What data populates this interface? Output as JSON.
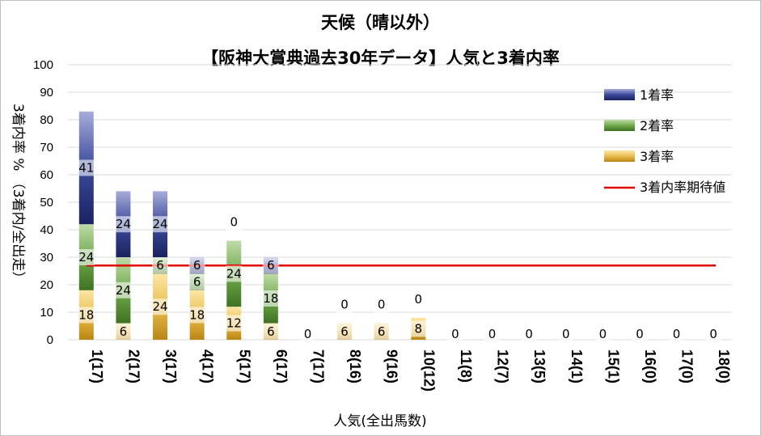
{
  "chart_data": {
    "type": "bar",
    "stacked": true,
    "title": "天候（晴以外）",
    "subtitle": "【阪神大賞典過去30年データ】人気と3着内率",
    "xlabel": "人気(全出馬数)",
    "ylabel": "3着内率 %  （3着内/全出走）",
    "ylim": [
      0,
      100
    ],
    "yticks": [
      0,
      10,
      20,
      30,
      40,
      50,
      60,
      70,
      80,
      90,
      100
    ],
    "grid": true,
    "legend_position": "right",
    "categories": [
      "1(17)",
      "2(17)",
      "3(17)",
      "4(17)",
      "5(17)",
      "6(17)",
      "7(17)",
      "8(16)",
      "9(16)",
      "10(12)",
      "11(8)",
      "12(7)",
      "13(5)",
      "14(1)",
      "15(1)",
      "16(0)",
      "17(0)",
      "18(0)"
    ],
    "series": [
      {
        "name": "1着率",
        "color": "#3b4a9c",
        "values": [
          41,
          24,
          24,
          6,
          0,
          6,
          0,
          0,
          0,
          0,
          0,
          0,
          0,
          0,
          0,
          0,
          0,
          0
        ]
      },
      {
        "name": "2着率",
        "color": "#5a8f3a",
        "values": [
          24,
          24,
          6,
          6,
          24,
          18,
          0,
          0,
          0,
          0,
          0,
          0,
          0,
          0,
          0,
          0,
          0,
          0
        ]
      },
      {
        "name": "3着率",
        "color": "#d4a028",
        "values": [
          18,
          6,
          24,
          18,
          12,
          6,
          0,
          6,
          6,
          8,
          0,
          0,
          0,
          0,
          0,
          0,
          0,
          0
        ]
      }
    ],
    "reference_line": {
      "name": "3着内率期待値",
      "value": 27,
      "color": "#e00000"
    }
  }
}
